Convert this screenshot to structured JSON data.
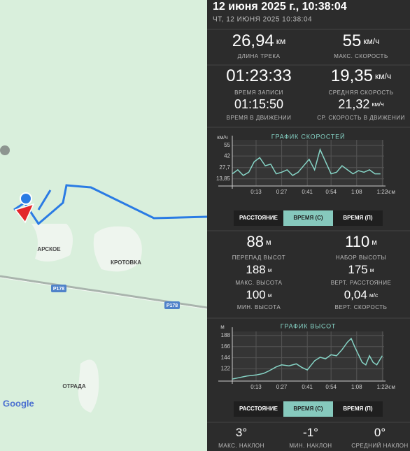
{
  "map": {
    "labels": [
      "АРСКОЕ",
      "КРОТОВКА",
      "Р178",
      "Р178",
      "ОТРАДА"
    ],
    "attribution": "Google"
  },
  "header": {
    "title": "12 июня 2025 г., 10:38:04",
    "subtitle": "ЧТ, 12 ИЮНЯ 2025 10:38:04"
  },
  "stats_top": [
    {
      "value": "26,94",
      "unit": "км",
      "label": "ДЛИНА ТРЕКА"
    },
    {
      "value": "55",
      "unit": "км/ч",
      "label": "МАКС. СКОРОСТЬ"
    }
  ],
  "stats_time": [
    {
      "value": "01:23:33",
      "label": "ВРЕМЯ ЗАПИСИ"
    },
    {
      "value": "19,35",
      "unit": "км/ч",
      "label": "СРЕДНЯЯ СКОРОСТЬ"
    },
    {
      "value": "01:15:50",
      "label": "ВРЕМЯ В ДВИЖЕНИИ"
    },
    {
      "value": "21,32",
      "unit": "км/ч",
      "label": "СР. СКОРОСТЬ В ДВИЖЕНИИ"
    }
  ],
  "speed_chart": {
    "type": "line",
    "title": "ГРАФИК СКОРОСТЕЙ",
    "y_unit": "км/ч",
    "x_unit": "ч:м",
    "color": "#86d4c6",
    "x": [
      0,
      3,
      6,
      9,
      12,
      15,
      18,
      21,
      24,
      27,
      30,
      33,
      36,
      39,
      42,
      45,
      48,
      51,
      54,
      57,
      60,
      63,
      66,
      69,
      72,
      75,
      78,
      81
    ],
    "values": [
      20,
      25,
      18,
      22,
      35,
      40,
      30,
      32,
      20,
      22,
      25,
      18,
      22,
      30,
      38,
      25,
      50,
      35,
      20,
      22,
      30,
      25,
      20,
      24,
      22,
      25,
      20,
      20
    ],
    "xlim": [
      0,
      83
    ],
    "ylim": [
      5,
      62
    ],
    "xticks": [
      {
        "value": 13,
        "label": "0:13"
      },
      {
        "value": 27,
        "label": "0:27"
      },
      {
        "value": 41,
        "label": "0:41"
      },
      {
        "value": 54,
        "label": "0:54"
      },
      {
        "value": 68,
        "label": "1:08"
      },
      {
        "value": 82,
        "label": "1:22"
      }
    ],
    "yticks": [
      {
        "value": 13.85,
        "label": "13,85"
      },
      {
        "value": 27.7,
        "label": "27,7"
      },
      42,
      55
    ]
  },
  "speed_tabs": {
    "labels": [
      "РАССТОЯНИЕ",
      "ВРЕМЯ (С)",
      "ВРЕМЯ (П)"
    ],
    "active": 1
  },
  "elevation_stats": [
    {
      "value": "88",
      "unit": "м",
      "label": "ПЕРЕПАД ВЫСОТ"
    },
    {
      "value": "110",
      "unit": "м",
      "label": "НАБОР ВЫСОТЫ"
    },
    {
      "value": "188",
      "unit": "м",
      "label": "МАКС. ВЫСОТА"
    },
    {
      "value": "175",
      "unit": "м",
      "label": "ВЕРТ. РАССТОЯНИЕ"
    },
    {
      "value": "100",
      "unit": "м",
      "label": "МИН. ВЫСОТА"
    },
    {
      "value": "0,04",
      "unit": "м/с",
      "label": "ВЕРТ. СКОРОСТЬ"
    }
  ],
  "elevation_chart": {
    "type": "line",
    "title": "ГРАФИК ВЫСОТ",
    "y_unit": "м",
    "x_unit": "ч:м",
    "color": "#86d4c6",
    "x": [
      0,
      4,
      8,
      13,
      17,
      20,
      24,
      27,
      31,
      35,
      38,
      41,
      45,
      48,
      51,
      54,
      57,
      60,
      63,
      65,
      67,
      69,
      71,
      73,
      75,
      77,
      79,
      82
    ],
    "values": [
      102,
      105,
      108,
      110,
      113,
      118,
      126,
      130,
      128,
      132,
      125,
      120,
      138,
      145,
      142,
      150,
      148,
      160,
      175,
      182,
      165,
      150,
      135,
      130,
      148,
      135,
      130,
      148
    ],
    "xlim": [
      0,
      83
    ],
    "ylim": [
      98,
      196
    ],
    "xticks": [
      {
        "value": 13,
        "label": "0:13"
      },
      {
        "value": 27,
        "label": "0:27"
      },
      {
        "value": 41,
        "label": "0:41"
      },
      {
        "value": 54,
        "label": "0:54"
      },
      {
        "value": 68,
        "label": "1:08"
      },
      {
        "value": 82,
        "label": "1:22"
      }
    ],
    "yticks": [
      122,
      144,
      166,
      188
    ]
  },
  "elevation_tabs": {
    "labels": [
      "РАССТОЯНИЕ",
      "ВРЕМЯ (С)",
      "ВРЕМЯ (П)"
    ],
    "active": 1
  },
  "slope_stats": [
    {
      "value": "3°",
      "label": "МАКС. НАКЛОН"
    },
    {
      "value": "-1°",
      "label": "МИН. НАКЛОН"
    },
    {
      "value": "0°",
      "label": "СРЕДНИЙ НАКЛОН"
    }
  ]
}
